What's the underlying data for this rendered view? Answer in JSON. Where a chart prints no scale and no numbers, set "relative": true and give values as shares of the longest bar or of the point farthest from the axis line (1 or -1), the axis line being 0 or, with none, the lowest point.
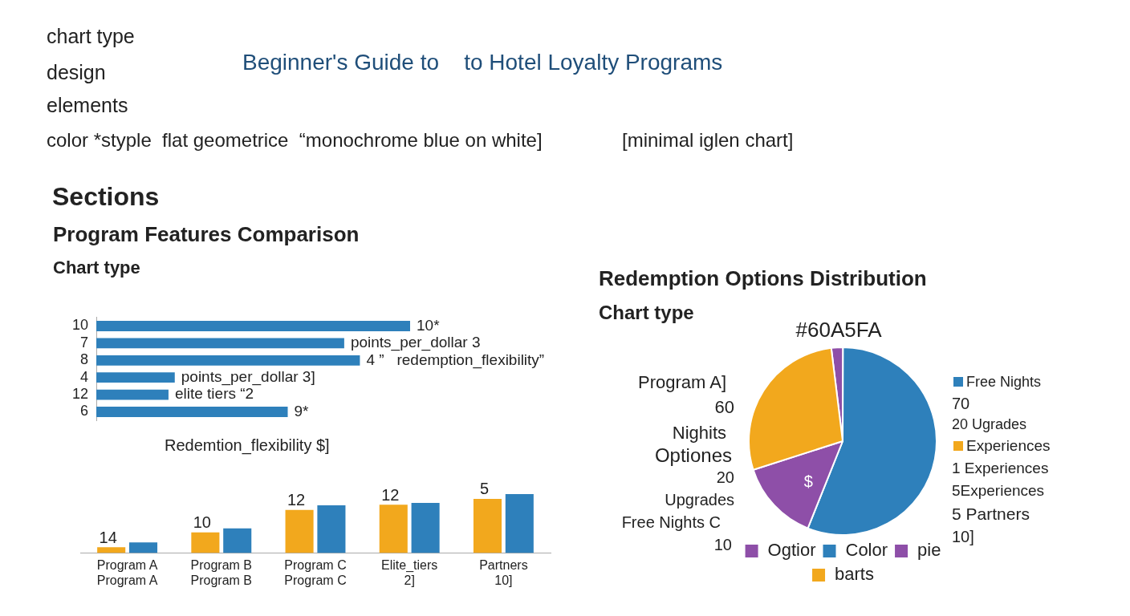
{
  "chart_data": [
    {
      "type": "other",
      "title": "Beginner's Guide to    to Hotel Loyalty Programs",
      "annotations": [
        "chart type",
        "design",
        "elements",
        "color *styple  flat geometrice  “monochrome blue on white]",
        "[minimal iglen chart]",
        "Sections"
      ]
    },
    {
      "type": "bar",
      "orientation": "horizontal",
      "relative": true,
      "title": "Program Features Comparison",
      "subtitle": "Chart type",
      "xlabel": "Redemtion_flexibility $]",
      "categories": [
        "10",
        "7",
        "8",
        "4",
        "12",
        "6"
      ],
      "series": [
        {
          "color": "#2e80bb",
          "values": [
            1,
            0.79,
            0.84,
            0.25,
            0.23,
            0.61
          ]
        }
      ],
      "annotations": [
        {
          "text": "10*",
          "x": 1,
          "y": "10"
        },
        {
          "text": "points_per_dollar 3",
          "x": 0.79,
          "y": "7"
        },
        {
          "text": "4 ”   redemption_flexibility”",
          "x": 0.84,
          "y": "8"
        },
        {
          "text": "points_per_dollar 3]",
          "x": 0.25,
          "y": "4"
        },
        {
          "text": "elite tiers “2",
          "x": 0.23,
          "y": "12"
        },
        {
          "text": "9*",
          "x": 0.61,
          "y": "6"
        }
      ]
    },
    {
      "type": "bar",
      "relative": true,
      "categories": [
        "Program A\nProgram A",
        "Program B\nProgram B",
        "Program C\nProgram C",
        "Elite_tiers\n2]",
        "Partners\n10]"
      ],
      "series": [
        {
          "color": "#f2a81d",
          "values": [
            0.1,
            0.35,
            0.73,
            0.82,
            0.92
          ]
        },
        {
          "color": "#2e80bb",
          "values": [
            0.18,
            0.42,
            0.81,
            0.85,
            1
          ]
        }
      ],
      "annotations": [
        {
          "text": "14",
          "x": "Program A\nProgram A",
          "y": 0.1
        },
        {
          "text": "10",
          "x": "Program B\nProgram B",
          "y": 0.35
        },
        {
          "text": "12",
          "x": "Program C\nProgram C",
          "y": 0.73
        },
        {
          "text": "12",
          "x": "Elite_tiers\n2]",
          "y": 0.82
        },
        {
          "text": "5",
          "x": "Partners\n10]",
          "y": 0.92
        }
      ]
    },
    {
      "type": "pie",
      "title": "Redemption Options Distribution",
      "subtitle": "Chart type",
      "categories": [
        "Ogtior",
        "Color",
        "pie",
        "barts"
      ],
      "values": [
        2,
        56,
        14,
        28
      ],
      "colors": [
        "#8e4fa8",
        "#2e80bb",
        "#8e4fa8",
        "#f2a81d"
      ],
      "legend": "bottom",
      "annotations": [
        "#60A5FA",
        "Program A]",
        "60",
        "Nighits",
        "Optiones",
        "20",
        "Upgrades",
        "Free Nights C",
        "10",
        "Free Nights",
        "70",
        "20 Ugrades",
        "Experiences",
        "1 Experiences",
        "5Experiences",
        "5 Partners",
        "10]",
        {
          "text": "$",
          "x": "pie"
        }
      ]
    }
  ]
}
